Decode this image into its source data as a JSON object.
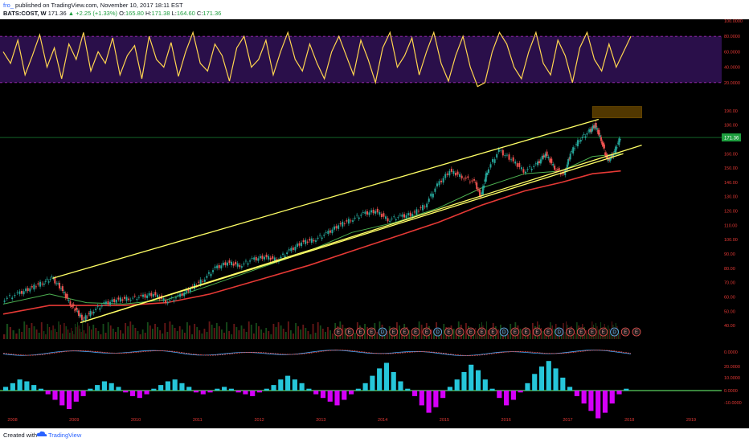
{
  "header": {
    "author": "fro_",
    "published": "published on TradingView.com, November 10, 2017 18:11 EST",
    "symbol": "BATS:COST, W",
    "last": "171.36",
    "change": "+2.25 (+1.33%)",
    "ohlc": {
      "o_label": "O:",
      "o": "165.80",
      "h_label": "H:",
      "h": "171.38",
      "l_label": "L:",
      "l": "164.60",
      "c_label": "C:",
      "c": "171.36"
    }
  },
  "footer": {
    "created_with": "Created with",
    "brand": "TradingView"
  },
  "colors": {
    "background": "#000000",
    "up": "#26a69a",
    "down": "#ef5350",
    "channel": "#ffff66",
    "ma_green": "#4caf50",
    "ma_red": "#e53935",
    "rsi_band": "#2a0f4a",
    "rsi_line": "#ffd54f",
    "supply_zone": "#6d4a00",
    "price_tag": "#1e9e3f"
  },
  "chart_data": {
    "type": "line",
    "title": "",
    "price_axis_labels": [
      "190.00",
      "180.00",
      "171.36",
      "160.00",
      "150.00",
      "140.00",
      "130.00",
      "120.00",
      "110.00",
      "100.00",
      "90.00",
      "80.00",
      "70.00",
      "60.00",
      "50.00",
      "40.00"
    ],
    "time_axis_labels": [
      "2008",
      "2009",
      "2010",
      "2011",
      "2012",
      "2013",
      "2014",
      "2015",
      "2016",
      "2017",
      "2018",
      "2019"
    ],
    "rsi_axis_labels": [
      "100.0000",
      "80.0000",
      "60.0000",
      "40.0000",
      "20.0000"
    ],
    "macd_axis_labels": [
      "0.0000",
      "20.0000",
      "10.0000",
      "0.0000",
      "-10.0000"
    ],
    "ylim": [
      35,
      200
    ],
    "current_price": 171.36,
    "price_series": [
      {
        "x": 2007.85,
        "y": 58
      },
      {
        "x": 2008.1,
        "y": 62
      },
      {
        "x": 2008.3,
        "y": 66
      },
      {
        "x": 2008.5,
        "y": 70
      },
      {
        "x": 2008.65,
        "y": 73
      },
      {
        "x": 2008.8,
        "y": 66
      },
      {
        "x": 2008.95,
        "y": 55
      },
      {
        "x": 2009.05,
        "y": 50
      },
      {
        "x": 2009.15,
        "y": 44
      },
      {
        "x": 2009.3,
        "y": 50
      },
      {
        "x": 2009.5,
        "y": 55
      },
      {
        "x": 2009.7,
        "y": 58
      },
      {
        "x": 2009.9,
        "y": 59
      },
      {
        "x": 2010.1,
        "y": 60
      },
      {
        "x": 2010.3,
        "y": 62
      },
      {
        "x": 2010.5,
        "y": 57
      },
      {
        "x": 2010.7,
        "y": 60
      },
      {
        "x": 2010.9,
        "y": 66
      },
      {
        "x": 2011.1,
        "y": 72
      },
      {
        "x": 2011.3,
        "y": 80
      },
      {
        "x": 2011.5,
        "y": 84
      },
      {
        "x": 2011.7,
        "y": 82
      },
      {
        "x": 2011.9,
        "y": 86
      },
      {
        "x": 2012.1,
        "y": 88
      },
      {
        "x": 2012.3,
        "y": 86
      },
      {
        "x": 2012.5,
        "y": 92
      },
      {
        "x": 2012.7,
        "y": 98
      },
      {
        "x": 2012.9,
        "y": 100
      },
      {
        "x": 2013.1,
        "y": 104
      },
      {
        "x": 2013.3,
        "y": 110
      },
      {
        "x": 2013.5,
        "y": 114
      },
      {
        "x": 2013.7,
        "y": 118
      },
      {
        "x": 2013.9,
        "y": 120
      },
      {
        "x": 2014.1,
        "y": 114
      },
      {
        "x": 2014.3,
        "y": 116
      },
      {
        "x": 2014.5,
        "y": 118
      },
      {
        "x": 2014.7,
        "y": 124
      },
      {
        "x": 2014.9,
        "y": 138
      },
      {
        "x": 2015.1,
        "y": 148
      },
      {
        "x": 2015.3,
        "y": 144
      },
      {
        "x": 2015.5,
        "y": 140
      },
      {
        "x": 2015.6,
        "y": 130
      },
      {
        "x": 2015.7,
        "y": 148
      },
      {
        "x": 2015.9,
        "y": 162
      },
      {
        "x": 2016.1,
        "y": 156
      },
      {
        "x": 2016.3,
        "y": 148
      },
      {
        "x": 2016.5,
        "y": 152
      },
      {
        "x": 2016.65,
        "y": 160
      },
      {
        "x": 2016.8,
        "y": 150
      },
      {
        "x": 2016.95,
        "y": 145
      },
      {
        "x": 2017.05,
        "y": 160
      },
      {
        "x": 2017.2,
        "y": 170
      },
      {
        "x": 2017.35,
        "y": 175
      },
      {
        "x": 2017.45,
        "y": 180
      },
      {
        "x": 2017.55,
        "y": 170
      },
      {
        "x": 2017.65,
        "y": 155
      },
      {
        "x": 2017.75,
        "y": 160
      },
      {
        "x": 2017.86,
        "y": 171.36
      }
    ],
    "series": [
      {
        "values": [
          {
            "x": 2007.85,
            "y": 55
          },
          {
            "x": 2008.6,
            "y": 62
          },
          {
            "x": 2009.2,
            "y": 56
          },
          {
            "x": 2009.8,
            "y": 55
          },
          {
            "x": 2010.5,
            "y": 58
          },
          {
            "x": 2011.2,
            "y": 68
          },
          {
            "x": 2012.0,
            "y": 80
          },
          {
            "x": 2012.8,
            "y": 92
          },
          {
            "x": 2013.5,
            "y": 105
          },
          {
            "x": 2014.2,
            "y": 112
          },
          {
            "x": 2014.9,
            "y": 122
          },
          {
            "x": 2015.6,
            "y": 136
          },
          {
            "x": 2016.3,
            "y": 146
          },
          {
            "x": 2016.9,
            "y": 148
          },
          {
            "x": 2017.4,
            "y": 158
          },
          {
            "x": 2017.86,
            "y": 160
          }
        ]
      },
      {
        "values": [
          {
            "x": 2007.85,
            "y": 48
          },
          {
            "x": 2008.6,
            "y": 54
          },
          {
            "x": 2009.2,
            "y": 54
          },
          {
            "x": 2009.8,
            "y": 54
          },
          {
            "x": 2010.5,
            "y": 56
          },
          {
            "x": 2011.2,
            "y": 62
          },
          {
            "x": 2012.0,
            "y": 72
          },
          {
            "x": 2012.8,
            "y": 82
          },
          {
            "x": 2013.5,
            "y": 92
          },
          {
            "x": 2014.2,
            "y": 102
          },
          {
            "x": 2014.9,
            "y": 112
          },
          {
            "x": 2015.6,
            "y": 124
          },
          {
            "x": 2016.3,
            "y": 134
          },
          {
            "x": 2016.9,
            "y": 140
          },
          {
            "x": 2017.4,
            "y": 146
          },
          {
            "x": 2017.86,
            "y": 148
          }
        ]
      }
    ],
    "channel": {
      "upper": [
        {
          "x": 2008.65,
          "y": 73
        },
        {
          "x": 2017.5,
          "y": 184
        }
      ],
      "lower": [
        {
          "x": 2009.1,
          "y": 42
        },
        {
          "x": 2018.2,
          "y": 166
        }
      ],
      "mid": [
        {
          "x": 2009.1,
          "y": 42
        },
        {
          "x": 2017.9,
          "y": 160
        }
      ]
    },
    "supply_zone": {
      "x0": 2017.4,
      "x1": 2018.2,
      "y0": 185,
      "y1": 193
    },
    "earnings_markers": [
      "E",
      "E",
      "E",
      "E",
      "D",
      "E",
      "E",
      "E",
      "E",
      "D",
      "E",
      "E",
      "E",
      "E",
      "E",
      "D",
      "E",
      "E",
      "E",
      "E",
      "D",
      "E",
      "E",
      "E",
      "E",
      "D",
      "E",
      "E"
    ],
    "rsi": {
      "band": [
        20,
        80
      ],
      "values": [
        60,
        45,
        75,
        30,
        55,
        82,
        40,
        65,
        25,
        70,
        50,
        85,
        35,
        60,
        45,
        78,
        30,
        55,
        68,
        25,
        80,
        50,
        40,
        72,
        28,
        60,
        85,
        45,
        35,
        70,
        55,
        22,
        65,
        80,
        40,
        50,
        75,
        30,
        60,
        85,
        50,
        35,
        70,
        45,
        25,
        60,
        80,
        55,
        30,
        75,
        50,
        20,
        65,
        85,
        40,
        55,
        78,
        30,
        60,
        85,
        45,
        22,
        55,
        80,
        40,
        15,
        20,
        60,
        85,
        70,
        40,
        25,
        60,
        85,
        45,
        30,
        75,
        55,
        20,
        65,
        85,
        50,
        35,
        70,
        40,
        60,
        80
      ]
    },
    "macd_histogram": [
      2,
      4,
      6,
      5,
      3,
      1,
      -2,
      -5,
      -8,
      -10,
      -6,
      -3,
      1,
      3,
      5,
      4,
      2,
      -1,
      -3,
      -4,
      -2,
      1,
      3,
      5,
      6,
      4,
      2,
      -1,
      -2,
      -1,
      1,
      2,
      1,
      -1,
      -2,
      -3,
      -1,
      1,
      3,
      6,
      8,
      6,
      4,
      1,
      -2,
      -4,
      -6,
      -8,
      -5,
      -2,
      1,
      4,
      8,
      12,
      15,
      10,
      5,
      1,
      -3,
      -8,
      -12,
      -9,
      -4,
      2,
      6,
      10,
      14,
      11,
      6,
      1,
      -4,
      -8,
      -5,
      -1,
      4,
      9,
      13,
      16,
      12,
      7,
      2,
      -3,
      -7,
      -11,
      -15,
      -12,
      -7,
      -2,
      1
    ]
  }
}
